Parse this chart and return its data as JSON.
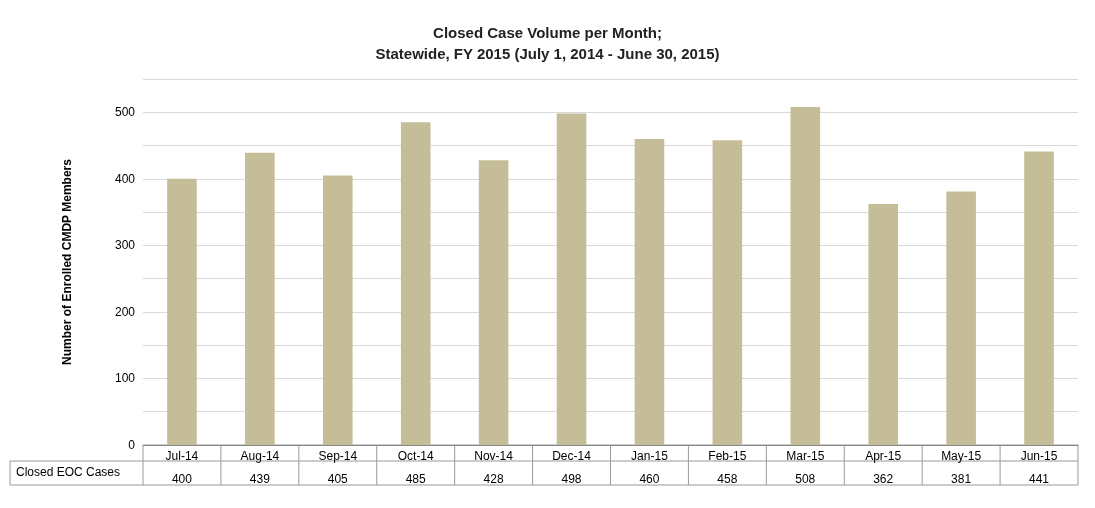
{
  "chart_data": {
    "type": "bar",
    "title": "Closed Case Volume per Month;",
    "subtitle": "Statewide, FY 2015 (July 1, 2014 - June 30, 2015)",
    "ylabel": "Number of Enrolled CMDP Members",
    "categories": [
      "Jul-14",
      "Aug-14",
      "Sep-14",
      "Oct-14",
      "Nov-14",
      "Dec-14",
      "Jan-15",
      "Feb-15",
      "Mar-15",
      "Apr-15",
      "May-15",
      "Jun-15"
    ],
    "series": [
      {
        "name": "Closed EOC Cases",
        "color": "#c4bd97",
        "values": [
          400,
          439,
          405,
          485,
          428,
          498,
          460,
          458,
          508,
          362,
          381,
          441
        ]
      }
    ],
    "ylim": [
      0,
      550
    ],
    "yticks": [
      0,
      100,
      200,
      300,
      400,
      500
    ],
    "grid": "y",
    "legend": false,
    "data_labels": true
  }
}
